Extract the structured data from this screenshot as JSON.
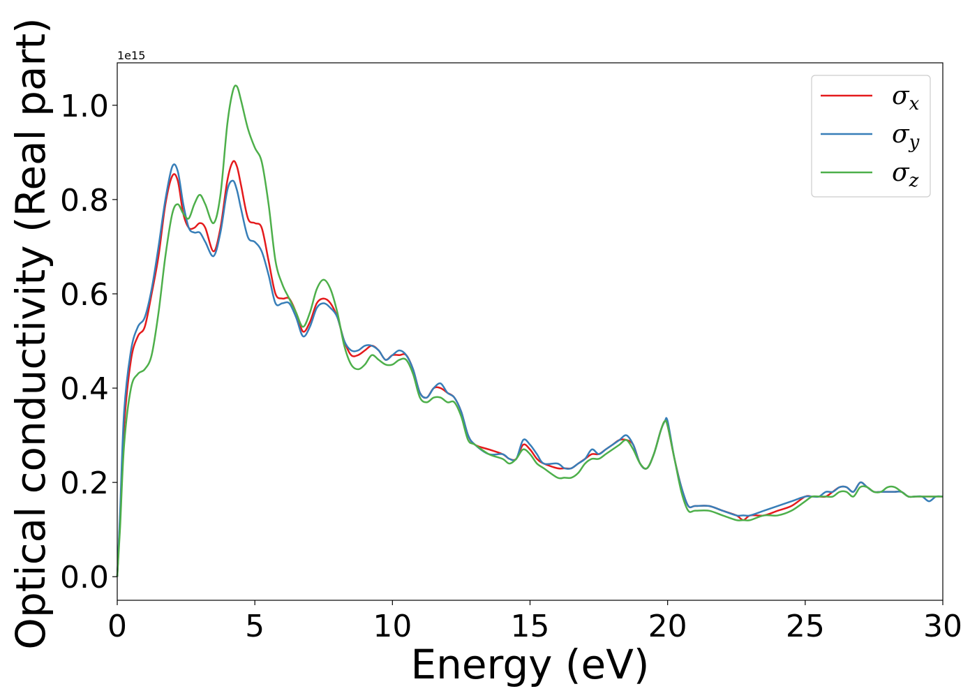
{
  "chart_data": {
    "type": "line",
    "xlabel": "Energy (eV)",
    "ylabel": "Optical conductivity (Real part)",
    "y_offset_text": "1e15",
    "xlim": [
      0,
      30
    ],
    "ylim": [
      -0.05,
      1.09
    ],
    "xticks": [
      0,
      5,
      10,
      15,
      20,
      25,
      30
    ],
    "xtick_labels": [
      "0",
      "5",
      "10",
      "15",
      "20",
      "25",
      "30"
    ],
    "yticks": [
      0.0,
      0.2,
      0.4,
      0.6,
      0.8,
      1.0
    ],
    "ytick_labels": [
      "0.0",
      "0.2",
      "0.4",
      "0.6",
      "0.8",
      "1.0"
    ],
    "grid": false,
    "legend_position": "top-right",
    "series": [
      {
        "name": "σ_x",
        "legend_symbol": "σ",
        "legend_subscript": "x",
        "color": "#e41a1c",
        "x": [
          0,
          0.1,
          0.25,
          0.5,
          0.75,
          1.0,
          1.25,
          1.5,
          1.75,
          2.0,
          2.2,
          2.4,
          2.6,
          2.8,
          3.0,
          3.2,
          3.5,
          3.75,
          4.0,
          4.2,
          4.35,
          4.5,
          4.75,
          5.0,
          5.25,
          5.5,
          5.75,
          6.0,
          6.25,
          6.5,
          6.75,
          7.0,
          7.25,
          7.5,
          7.75,
          8.0,
          8.25,
          8.5,
          8.75,
          9.0,
          9.25,
          9.5,
          9.75,
          10.0,
          10.25,
          10.5,
          10.75,
          11.0,
          11.25,
          11.5,
          11.75,
          12.0,
          12.25,
          12.5,
          12.75,
          13.0,
          13.5,
          14.0,
          14.25,
          14.5,
          14.75,
          15.0,
          15.25,
          15.5,
          16.0,
          16.25,
          16.5,
          16.75,
          17.0,
          17.25,
          17.5,
          17.75,
          18.0,
          18.25,
          18.5,
          18.75,
          19.0,
          19.25,
          19.5,
          19.75,
          19.9,
          20.0,
          20.25,
          20.5,
          20.75,
          21.0,
          21.5,
          22.0,
          22.5,
          22.75,
          23.0,
          23.5,
          24.0,
          24.5,
          25.0,
          25.25,
          25.5,
          25.75,
          26.0,
          26.25,
          26.5,
          26.75,
          27.0,
          27.25,
          27.5,
          27.75,
          28.0,
          28.25,
          28.5,
          28.75,
          29.0,
          29.25,
          29.5,
          29.75,
          30.0
        ],
        "y": [
          0.0,
          0.12,
          0.32,
          0.46,
          0.51,
          0.53,
          0.6,
          0.68,
          0.79,
          0.85,
          0.84,
          0.77,
          0.74,
          0.74,
          0.75,
          0.74,
          0.69,
          0.74,
          0.84,
          0.88,
          0.87,
          0.83,
          0.76,
          0.75,
          0.74,
          0.67,
          0.6,
          0.59,
          0.59,
          0.56,
          0.52,
          0.54,
          0.58,
          0.59,
          0.58,
          0.55,
          0.5,
          0.47,
          0.47,
          0.48,
          0.49,
          0.48,
          0.46,
          0.47,
          0.47,
          0.47,
          0.44,
          0.39,
          0.38,
          0.4,
          0.4,
          0.39,
          0.38,
          0.35,
          0.3,
          0.28,
          0.27,
          0.26,
          0.25,
          0.25,
          0.28,
          0.27,
          0.25,
          0.24,
          0.23,
          0.23,
          0.23,
          0.24,
          0.25,
          0.26,
          0.26,
          0.27,
          0.28,
          0.29,
          0.29,
          0.28,
          0.24,
          0.23,
          0.26,
          0.31,
          0.33,
          0.32,
          0.25,
          0.19,
          0.15,
          0.15,
          0.15,
          0.14,
          0.13,
          0.12,
          0.13,
          0.13,
          0.14,
          0.15,
          0.17,
          0.17,
          0.17,
          0.17,
          0.18,
          0.19,
          0.19,
          0.18,
          0.2,
          0.19,
          0.18,
          0.18,
          0.18,
          0.18,
          0.18,
          0.17,
          0.17,
          0.17,
          0.17,
          0.17,
          0.17
        ]
      },
      {
        "name": "σ_y",
        "legend_symbol": "σ",
        "legend_subscript": "y",
        "color": "#377eb8",
        "x": [
          0,
          0.1,
          0.25,
          0.5,
          0.75,
          1.0,
          1.25,
          1.5,
          1.75,
          2.0,
          2.2,
          2.4,
          2.6,
          2.8,
          3.0,
          3.2,
          3.5,
          3.75,
          4.0,
          4.2,
          4.35,
          4.5,
          4.75,
          5.0,
          5.25,
          5.5,
          5.75,
          6.0,
          6.25,
          6.5,
          6.75,
          7.0,
          7.25,
          7.5,
          7.75,
          8.0,
          8.25,
          8.5,
          8.75,
          9.0,
          9.25,
          9.5,
          9.75,
          10.0,
          10.25,
          10.5,
          10.75,
          11.0,
          11.25,
          11.5,
          11.75,
          12.0,
          12.25,
          12.5,
          12.75,
          13.0,
          13.5,
          14.0,
          14.25,
          14.5,
          14.75,
          15.0,
          15.25,
          15.5,
          16.0,
          16.25,
          16.5,
          16.75,
          17.0,
          17.25,
          17.5,
          17.75,
          18.0,
          18.25,
          18.5,
          18.75,
          19.0,
          19.25,
          19.5,
          19.75,
          19.9,
          20.0,
          20.25,
          20.5,
          20.75,
          21.0,
          21.5,
          22.0,
          22.5,
          22.75,
          23.0,
          23.5,
          24.0,
          24.5,
          25.0,
          25.25,
          25.5,
          25.75,
          26.0,
          26.25,
          26.5,
          26.75,
          27.0,
          27.25,
          27.5,
          27.75,
          28.0,
          28.25,
          28.5,
          28.75,
          29.0,
          29.25,
          29.5,
          29.75,
          30.0
        ],
        "y": [
          0.0,
          0.13,
          0.35,
          0.48,
          0.53,
          0.55,
          0.61,
          0.7,
          0.8,
          0.87,
          0.86,
          0.79,
          0.74,
          0.73,
          0.73,
          0.71,
          0.68,
          0.73,
          0.82,
          0.84,
          0.82,
          0.78,
          0.72,
          0.71,
          0.69,
          0.64,
          0.58,
          0.58,
          0.58,
          0.55,
          0.51,
          0.53,
          0.57,
          0.58,
          0.57,
          0.55,
          0.5,
          0.48,
          0.48,
          0.49,
          0.49,
          0.48,
          0.46,
          0.47,
          0.48,
          0.47,
          0.44,
          0.39,
          0.38,
          0.4,
          0.41,
          0.39,
          0.38,
          0.35,
          0.3,
          0.28,
          0.26,
          0.26,
          0.25,
          0.25,
          0.29,
          0.28,
          0.26,
          0.24,
          0.24,
          0.23,
          0.23,
          0.24,
          0.25,
          0.27,
          0.26,
          0.27,
          0.28,
          0.29,
          0.3,
          0.28,
          0.24,
          0.23,
          0.26,
          0.31,
          0.33,
          0.33,
          0.25,
          0.19,
          0.15,
          0.15,
          0.15,
          0.14,
          0.13,
          0.13,
          0.13,
          0.14,
          0.15,
          0.16,
          0.17,
          0.17,
          0.17,
          0.18,
          0.18,
          0.19,
          0.19,
          0.18,
          0.2,
          0.19,
          0.18,
          0.18,
          0.18,
          0.18,
          0.18,
          0.17,
          0.17,
          0.17,
          0.16,
          0.17,
          0.17
        ]
      },
      {
        "name": "σ_z",
        "legend_symbol": "σ",
        "legend_subscript": "z",
        "color": "#4daf4a",
        "x": [
          0,
          0.1,
          0.25,
          0.5,
          0.75,
          1.0,
          1.25,
          1.5,
          1.75,
          2.0,
          2.2,
          2.4,
          2.6,
          2.8,
          3.0,
          3.2,
          3.5,
          3.75,
          4.0,
          4.2,
          4.35,
          4.5,
          4.75,
          5.0,
          5.25,
          5.5,
          5.75,
          6.0,
          6.25,
          6.5,
          6.75,
          7.0,
          7.25,
          7.5,
          7.75,
          8.0,
          8.25,
          8.5,
          8.75,
          9.0,
          9.25,
          9.5,
          9.75,
          10.0,
          10.25,
          10.5,
          10.75,
          11.0,
          11.25,
          11.5,
          11.75,
          12.0,
          12.25,
          12.5,
          12.75,
          13.0,
          13.5,
          14.0,
          14.25,
          14.5,
          14.75,
          15.0,
          15.25,
          15.5,
          16.0,
          16.25,
          16.5,
          16.75,
          17.0,
          17.25,
          17.5,
          17.75,
          18.0,
          18.25,
          18.5,
          18.75,
          19.0,
          19.25,
          19.5,
          19.75,
          19.9,
          20.0,
          20.25,
          20.5,
          20.75,
          21.0,
          21.5,
          22.0,
          22.5,
          22.75,
          23.0,
          23.5,
          24.0,
          24.5,
          25.0,
          25.25,
          25.5,
          25.75,
          26.0,
          26.25,
          26.5,
          26.75,
          27.0,
          27.25,
          27.5,
          27.75,
          28.0,
          28.25,
          28.5,
          28.75,
          29.0,
          29.25,
          29.5,
          29.75,
          30.0
        ],
        "y": [
          0.0,
          0.1,
          0.28,
          0.4,
          0.43,
          0.44,
          0.47,
          0.56,
          0.68,
          0.77,
          0.79,
          0.77,
          0.76,
          0.79,
          0.81,
          0.79,
          0.75,
          0.81,
          0.96,
          1.03,
          1.04,
          1.01,
          0.95,
          0.91,
          0.88,
          0.79,
          0.67,
          0.62,
          0.59,
          0.56,
          0.53,
          0.56,
          0.61,
          0.63,
          0.61,
          0.56,
          0.49,
          0.45,
          0.44,
          0.45,
          0.47,
          0.46,
          0.45,
          0.45,
          0.46,
          0.46,
          0.43,
          0.38,
          0.37,
          0.38,
          0.38,
          0.37,
          0.37,
          0.34,
          0.29,
          0.28,
          0.26,
          0.25,
          0.24,
          0.25,
          0.27,
          0.26,
          0.24,
          0.23,
          0.21,
          0.21,
          0.21,
          0.22,
          0.24,
          0.25,
          0.25,
          0.26,
          0.27,
          0.28,
          0.29,
          0.27,
          0.24,
          0.23,
          0.26,
          0.31,
          0.33,
          0.32,
          0.25,
          0.18,
          0.14,
          0.14,
          0.14,
          0.13,
          0.12,
          0.12,
          0.12,
          0.13,
          0.13,
          0.14,
          0.16,
          0.17,
          0.17,
          0.17,
          0.17,
          0.18,
          0.18,
          0.17,
          0.19,
          0.19,
          0.18,
          0.18,
          0.19,
          0.19,
          0.18,
          0.17,
          0.17,
          0.17,
          0.17,
          0.17,
          0.17
        ]
      }
    ]
  }
}
